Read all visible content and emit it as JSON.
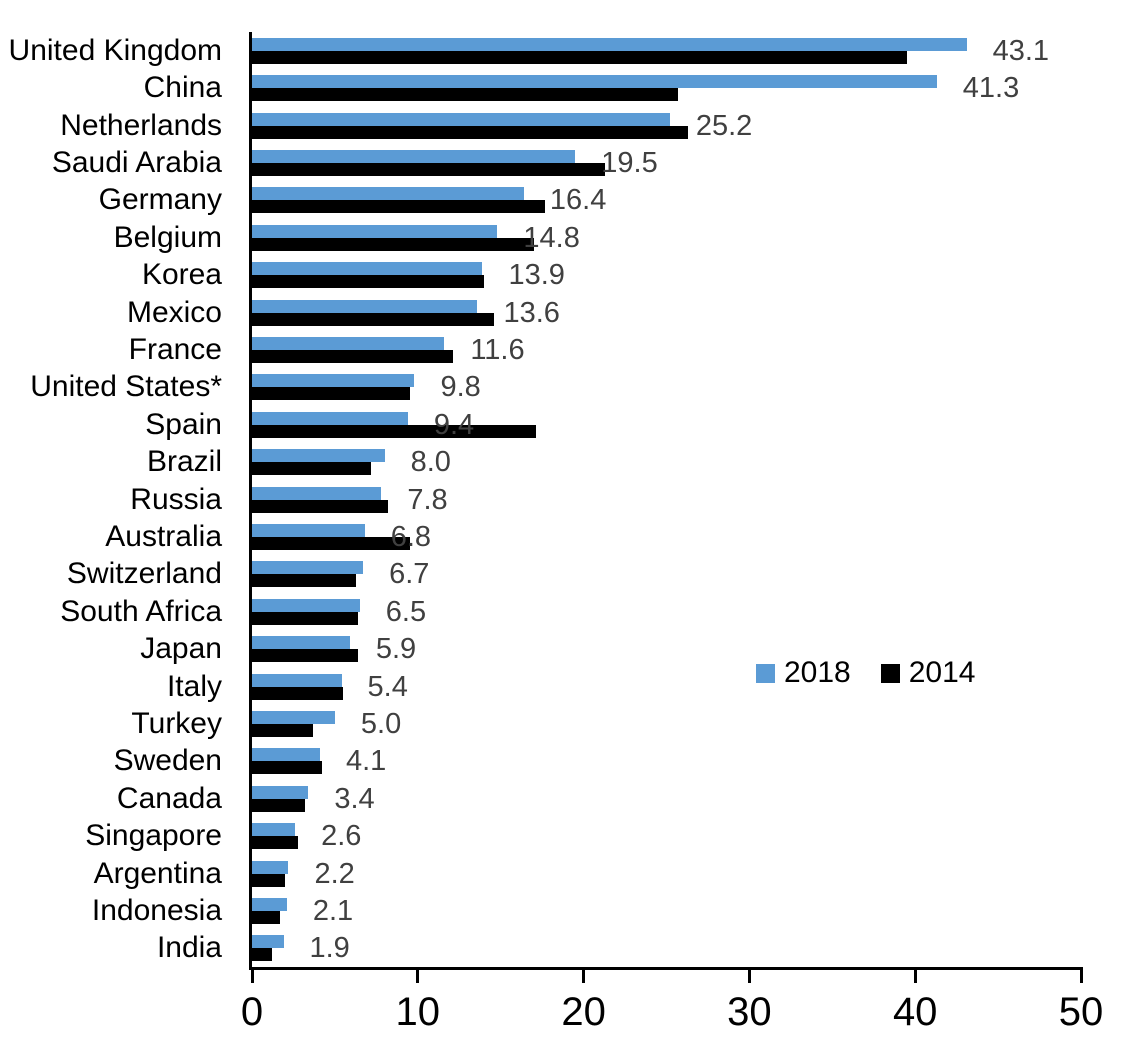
{
  "chart_data": {
    "type": "bar",
    "orientation": "horizontal",
    "title": "",
    "categories": [
      "United Kingdom",
      "China",
      "Netherlands",
      "Saudi Arabia",
      "Germany",
      "Belgium",
      "Korea",
      "Mexico",
      "France",
      "United States*",
      "Spain",
      "Brazil",
      "Russia",
      "Australia",
      "Switzerland",
      "South Africa",
      "Japan",
      "Italy",
      "Turkey",
      "Sweden",
      "Canada",
      "Singapore",
      "Argentina",
      "Indonesia",
      "India"
    ],
    "series": [
      {
        "name": "2018",
        "color": "#5B9BD5",
        "values": [
          43.1,
          41.3,
          25.2,
          19.5,
          16.4,
          14.8,
          13.9,
          13.6,
          11.6,
          9.8,
          9.4,
          8.0,
          7.8,
          6.8,
          6.7,
          6.5,
          5.9,
          5.4,
          5.0,
          4.1,
          3.4,
          2.6,
          2.2,
          2.1,
          1.9
        ]
      },
      {
        "name": "2014",
        "color": "#000000",
        "values": [
          39.5,
          25.7,
          26.3,
          21.3,
          17.7,
          17.0,
          14.0,
          14.6,
          12.1,
          9.5,
          17.1,
          7.2,
          8.2,
          9.5,
          6.3,
          6.4,
          6.4,
          5.5,
          3.7,
          4.2,
          3.2,
          2.8,
          2.0,
          1.7,
          1.2
        ]
      }
    ],
    "value_labels": [
      "43.1",
      "41.3",
      "25.2",
      "19.5",
      "16.4",
      "14.8",
      "13.9",
      "13.6",
      "11.6",
      "9.8",
      "9.4",
      "8.0",
      "7.8",
      "6.8",
      "6.7",
      "6.5",
      "5.9",
      "5.4",
      "5.0",
      "4.1",
      "3.4",
      "2.6",
      "2.2",
      "2.1",
      "1.9"
    ],
    "value_labels_for_series": "2018",
    "xlim": [
      0,
      50
    ],
    "x_ticks": [
      "0",
      "10",
      "20",
      "30",
      "40",
      "50"
    ],
    "grid": false,
    "legend": {
      "position": "center-right",
      "entries": [
        {
          "label": "2018",
          "color": "#5B9BD5"
        },
        {
          "label": "2014",
          "color": "#000000"
        }
      ]
    }
  },
  "colors": {
    "bar_2018": "#5B9BD5",
    "bar_2014": "#000000",
    "value_label": "#404040",
    "axis": "#000000",
    "background": "#FFFFFF",
    "text": "#000000"
  }
}
